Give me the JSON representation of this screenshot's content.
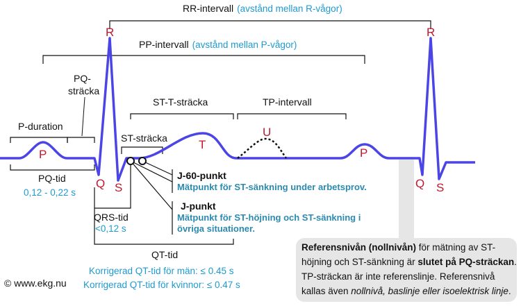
{
  "rr": {
    "label": "RR-intervall",
    "note": "(avstånd mellan R-vågor)"
  },
  "pp": {
    "label": "PP-intervall",
    "note": "(avstånd mellan P-vågor)"
  },
  "pq_stracka": {
    "line1": "PQ-",
    "line2": "sträcka"
  },
  "p_duration": "P-duration",
  "st_t": "ST-T-sträcka",
  "tp": "TP-intervall",
  "st_stracka": "ST-sträcka",
  "waves": {
    "p": "P",
    "q": "Q",
    "r": "R",
    "s": "S",
    "t": "T",
    "u": "U"
  },
  "pq_tid": {
    "label": "PQ-tid",
    "range": "0,12 - 0,22 s"
  },
  "qrs_tid": {
    "label": "QRS-tid",
    "range": "<0,12 s"
  },
  "qt_tid": {
    "label": "QT-tid",
    "men": "Korrigerad QT-tid för män: ≤ 0.45 s",
    "women": "Korrigerad QT-tid för kvinnor: ≤ 0.47 s"
  },
  "j60": {
    "title": "J-60-punkt",
    "desc": "Mätpunkt för ST-sänkning under arbetsprov."
  },
  "jpoint": {
    "title": "J-punkt",
    "desc1": "Mätpunkt för ST-höjning och ST-sänkning i",
    "desc2": "övriga situationer."
  },
  "reference_note": {
    "l1a": "Referensnivån (nollnivån)",
    "l1b": " för mätning av ST-",
    "l2a": "höjning och ST-sänkning är ",
    "l2b": "slutet på PQ-sträckan",
    "l2c": ".",
    "l3": "TP-sträckan är inte referenslinje. Referensnivå",
    "l4a": "kallas även ",
    "l4b": "nollnivå, baslinje eller isoelektrisk linje",
    "l4c": "."
  },
  "copyright": "© www.ekg.nu",
  "colors": {
    "wave": "#4b45e6",
    "wave_label": "#c0182e",
    "accent_text": "#1e9ad0",
    "note_box": "#e6e6e6"
  }
}
